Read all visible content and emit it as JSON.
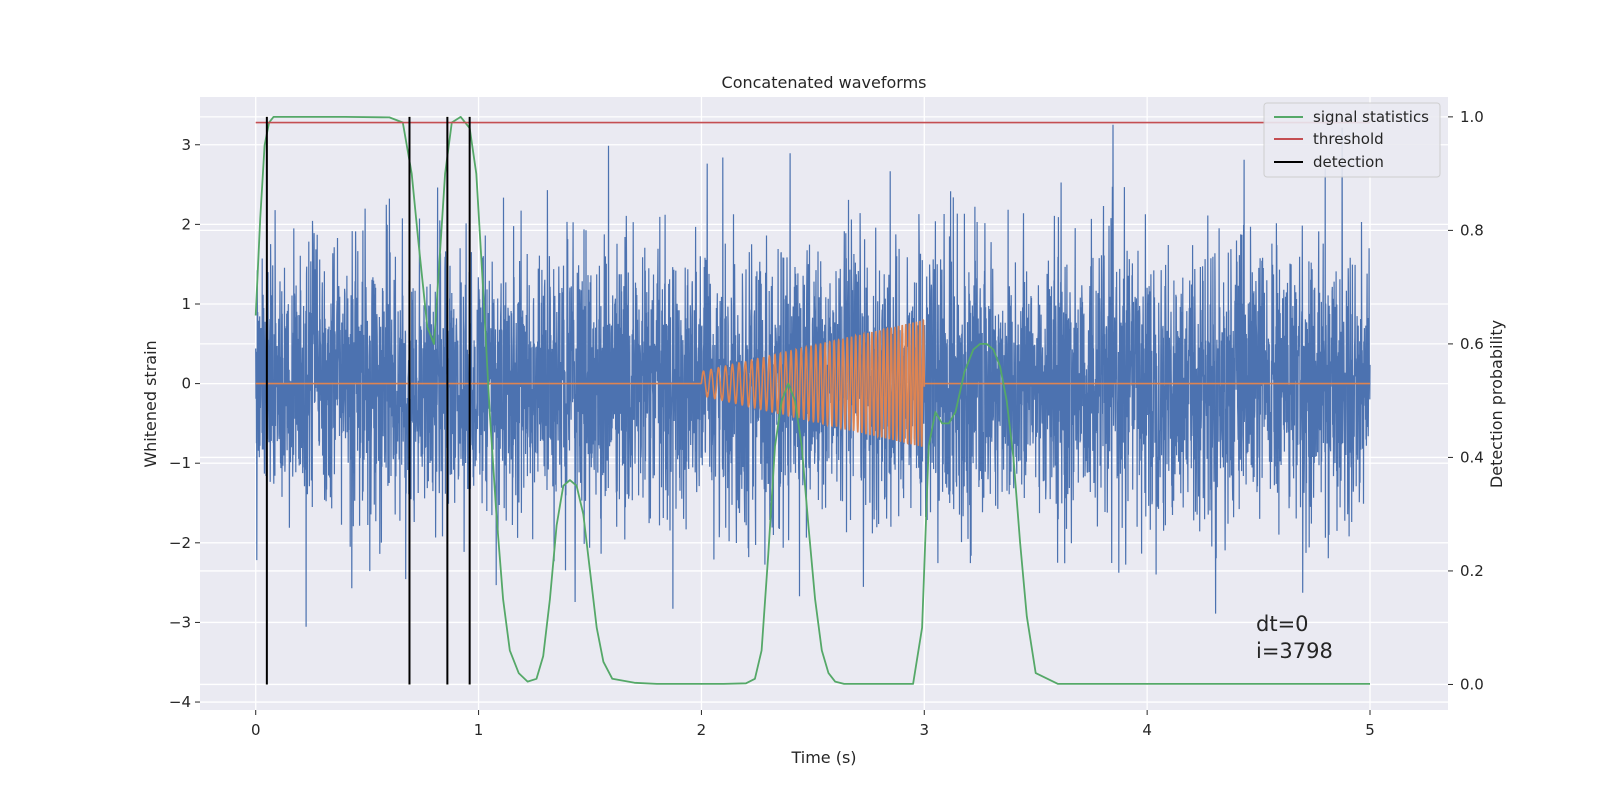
{
  "chart_data": {
    "type": "line",
    "title": "Concatenated waveforms",
    "xlabel": "Time (s)",
    "ylabel": "Whitened strain",
    "y2label": "Detection probability",
    "xlim": [
      -0.25,
      5.35
    ],
    "ylim": [
      -4.1,
      3.6
    ],
    "y2lim": [
      -0.045,
      1.035
    ],
    "xticks": [
      "0",
      "1",
      "2",
      "3",
      "4",
      "5"
    ],
    "yticks": [
      "3",
      "2",
      "1",
      "0",
      "−1",
      "−2",
      "−3",
      "−4"
    ],
    "y2ticks": [
      "1.0",
      "0.8",
      "0.6",
      "0.4",
      "0.2",
      "0.0"
    ],
    "grid": true,
    "legend_position": "top-right",
    "legend": [
      {
        "label": "signal statistics",
        "color": "#55a868"
      },
      {
        "label": "threshold",
        "color": "#c44e52"
      },
      {
        "label": "detection",
        "color": "#000000"
      }
    ],
    "annotations": [
      "dt=0",
      "i=3798"
    ],
    "series": [
      {
        "name": "",
        "role": "noise",
        "color": "#4c72b0",
        "x_range": [
          0,
          5
        ],
        "typical_amplitude": 0.85,
        "max_amplitude": 3.4
      },
      {
        "name": "",
        "role": "waveform",
        "color": "#dd8452",
        "chirp": {
          "start": 2.0,
          "end": 3.0,
          "amp_start": 0.15,
          "amp_end": 0.8,
          "freq_start": 28,
          "freq_end": 65
        }
      },
      {
        "name": "signal statistics",
        "color": "#55a868",
        "axis": "right",
        "x": [
          0,
          0.02,
          0.04,
          0.06,
          0.08,
          0.12,
          0.2,
          0.4,
          0.6,
          0.66,
          0.7,
          0.73,
          0.77,
          0.8,
          0.82,
          0.85,
          0.88,
          0.92,
          0.96,
          0.99,
          1.02,
          1.05,
          1.08,
          1.11,
          1.14,
          1.18,
          1.22,
          1.26,
          1.29,
          1.32,
          1.35,
          1.38,
          1.41,
          1.44,
          1.47,
          1.5,
          1.53,
          1.56,
          1.6,
          1.7,
          1.8,
          2.0,
          2.1,
          2.2,
          2.24,
          2.27,
          2.3,
          2.33,
          2.36,
          2.39,
          2.42,
          2.45,
          2.48,
          2.51,
          2.54,
          2.57,
          2.6,
          2.64,
          2.7,
          2.8,
          2.95,
          2.99,
          3.02,
          3.05,
          3.08,
          3.11,
          3.14,
          3.18,
          3.22,
          3.25,
          3.28,
          3.31,
          3.34,
          3.37,
          3.4,
          3.43,
          3.46,
          3.5,
          3.6,
          4.0,
          4.5,
          5.0
        ],
        "y": [
          0.65,
          0.82,
          0.95,
          0.99,
          1.0,
          1.0,
          1.0,
          1.0,
          0.999,
          0.99,
          0.9,
          0.78,
          0.63,
          0.6,
          0.72,
          0.9,
          0.99,
          1.0,
          0.98,
          0.9,
          0.7,
          0.48,
          0.3,
          0.15,
          0.06,
          0.02,
          0.005,
          0.01,
          0.05,
          0.15,
          0.28,
          0.35,
          0.36,
          0.35,
          0.3,
          0.2,
          0.1,
          0.04,
          0.01,
          0.003,
          0.001,
          0.001,
          0.001,
          0.002,
          0.01,
          0.06,
          0.23,
          0.42,
          0.5,
          0.53,
          0.5,
          0.42,
          0.28,
          0.15,
          0.06,
          0.02,
          0.005,
          0.001,
          0.001,
          0.001,
          0.001,
          0.1,
          0.42,
          0.48,
          0.46,
          0.46,
          0.48,
          0.55,
          0.59,
          0.6,
          0.6,
          0.59,
          0.56,
          0.5,
          0.4,
          0.25,
          0.12,
          0.02,
          0.001,
          0.001,
          0.001,
          0.001
        ]
      },
      {
        "name": "threshold",
        "color": "#c44e52",
        "axis": "right",
        "x": [
          0,
          5
        ],
        "y": [
          0.99,
          0.99
        ]
      },
      {
        "name": "detection",
        "color": "#000000",
        "axis": "right",
        "type": "vlines",
        "x": [
          0.05,
          0.69,
          0.86,
          0.96
        ],
        "ymin": 0,
        "ymax": 1.0
      }
    ]
  }
}
